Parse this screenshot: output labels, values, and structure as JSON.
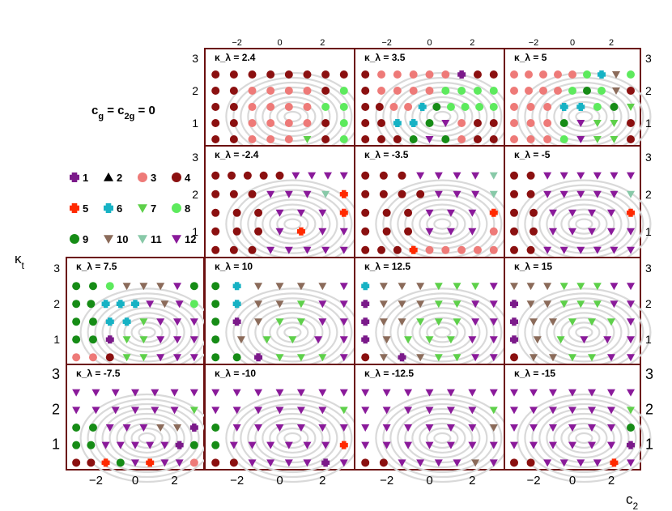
{
  "title_text": "c_g = c_2g = 0",
  "chart_data": {
    "type": "scatter",
    "description_label": "benchmark cluster assignment grid",
    "xlabel": "c_2",
    "ylabel": "κ_t",
    "xlim": [
      -3.5,
      3.5
    ],
    "ylim": [
      0.3,
      3.3
    ],
    "x_ticks": [
      -2,
      0,
      2
    ],
    "y_ticks": [
      1,
      2,
      3
    ],
    "x_grid_values": [
      -3,
      -2,
      -1.5,
      -1,
      -0.5,
      0,
      0.5,
      1,
      1.5,
      2,
      2.5,
      3
    ],
    "y_grid_values": [
      0.5,
      1,
      1.5,
      2,
      2.5
    ],
    "marker_note_kl_minus_3_5": "large dark red circle at c_2 = -3, kappa_t = 2",
    "panels": [
      {
        "label": "κ_λ = 2.4",
        "row": 0,
        "col": 1,
        "symbol_top_row_first": [
          "44444444",
          "44333348",
          "44333388",
          "44333348",
          "44333748"
        ]
      },
      {
        "label": "κ_λ = 3.5",
        "row": 0,
        "col": 2,
        "symbol_top_row_first": [
          "433333144",
          "433338888",
          "4433698888",
          "44669C344",
          "4449C9344"
        ]
      },
      {
        "label": "κ_λ = 5",
        "row": 0,
        "col": 3,
        "symbol_top_row_first": [
          "3333386A8",
          "3333898A4",
          "33366897",
          "3339C774",
          "3338C774"
        ]
      },
      {
        "label": "κ_λ = -2.4",
        "row": 1,
        "col": 1,
        "symbol_top_row_first": [
          "44444CCCC",
          "444CCCB5",
          "444CCC5",
          "444C5CC",
          "444CCCCC"
        ]
      },
      {
        "label": "κ_λ = -3.5",
        "row": 1,
        "col": 2,
        "symbol_top_row_first": [
          "444CCCCB",
          "4444CCCB",
          "444CCC5",
          "444CCC3",
          "444533333"
        ]
      },
      {
        "label": "κ_λ = -5",
        "row": 1,
        "col": 3,
        "symbol_top_row_first": [
          "44CCCCCC",
          "44CCCCCB",
          "44CCCC5",
          "44CCCCC",
          "44CCCCCC"
        ]
      },
      {
        "label": "κ_λ = 7.5",
        "row": 2,
        "col": 0,
        "symbol_top_row_first": [
          "998AAAC9",
          "99666CAC8",
          "99667CCC",
          "99177CCC",
          "33477CCC"
        ]
      },
      {
        "label": "κ_λ = 10",
        "row": 2,
        "col": 1,
        "symbol_top_row_first": [
          "96AAAAC",
          "96AA7CC",
          "91A77CC",
          "9A77CC",
          "991777C"
        ]
      },
      {
        "label": "κ_λ = 12.5",
        "row": 2,
        "col": 2,
        "symbol_top_row_first": [
          "6AAA777C",
          "1AAA77CC",
          "1AA777CC",
          "1A777CC",
          "4A1A77CC"
        ]
      },
      {
        "label": "κ_λ = 15",
        "row": 2,
        "col": 3,
        "symbol_top_row_first": [
          "AAA777CC",
          "1AA777CC",
          "1AA777C",
          "1A7CCC",
          "4AA77CC"
        ]
      },
      {
        "label": "κ_λ = -7.5",
        "row": 3,
        "col": 0,
        "symbol_top_row_first": [
          "CCCCCCC",
          "CCCCCC7",
          "99CCCAA1",
          "99CCCCC19",
          "4459C5CC3"
        ]
      },
      {
        "label": "κ_λ = -10",
        "row": 3,
        "col": 1,
        "symbol_top_row_first": [
          "CCCCCCC",
          "CCCCCC7",
          "9CCCCCC",
          "9CCCCCC5",
          "44CCCC1C"
        ]
      },
      {
        "label": "κ_λ = -12.5",
        "row": 3,
        "col": 2,
        "symbol_top_row_first": [
          "CCCCCCC",
          "CCCCCC7",
          "CCCCCCA",
          "CCCCCCC",
          "44CCCCAC"
        ]
      },
      {
        "label": "κ_λ = -15",
        "row": 3,
        "col": 3,
        "symbol_top_row_first": [
          "CCCCCCC",
          "CCCCCC7",
          "CCCCCC9",
          "CCCCCC1",
          "44CCCC5C"
        ]
      }
    ],
    "legend": [
      {
        "id": 1,
        "label": "1",
        "marker": "plus",
        "color": "#7b1a8a"
      },
      {
        "id": 2,
        "label": "2",
        "marker": "triangle-up",
        "color": "#000000"
      },
      {
        "id": 3,
        "label": "3",
        "marker": "circle",
        "color": "#ee7a78"
      },
      {
        "id": 4,
        "label": "4",
        "marker": "circle",
        "color": "#8b1010"
      },
      {
        "id": 5,
        "label": "5",
        "marker": "plus",
        "color": "#ff2a00"
      },
      {
        "id": 6,
        "label": "6",
        "marker": "plus",
        "color": "#17b2c4"
      },
      {
        "id": 7,
        "label": "7",
        "marker": "triangle-down",
        "color": "#5ed04a"
      },
      {
        "id": 8,
        "label": "8",
        "marker": "circle",
        "color": "#5dea5d"
      },
      {
        "id": 9,
        "label": "9",
        "marker": "circle",
        "color": "#168c16"
      },
      {
        "id": 10,
        "label": "10",
        "marker": "triangle-down",
        "color": "#8b6b5a"
      },
      {
        "id": 11,
        "label": "11",
        "marker": "triangle-down",
        "color": "#88c9a8"
      },
      {
        "id": 12,
        "label": "12",
        "marker": "triangle-down",
        "color": "#8a1a9a"
      }
    ],
    "symbol_key": {
      "1": 1,
      "3": 3,
      "4": 4,
      "5": 5,
      "6": 6,
      "7": 7,
      "8": 8,
      "9": 9,
      "A": 10,
      "B": 11,
      "C": 12
    }
  }
}
